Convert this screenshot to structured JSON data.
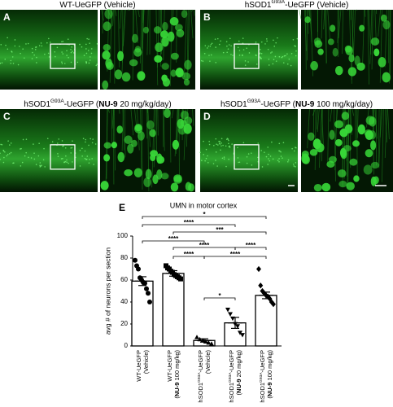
{
  "panels": [
    {
      "letter": "A",
      "title": [
        {
          "text": "WT-UeGFP (Vehicle)"
        }
      ]
    },
    {
      "letter": "B",
      "title": [
        {
          "text": "hSOD1"
        },
        {
          "text": "G93A",
          "style": "sup"
        },
        {
          "text": "-UeGFP (Vehicle)"
        }
      ]
    },
    {
      "letter": "C",
      "title": [
        {
          "text": "hSOD1"
        },
        {
          "text": "G93A",
          "style": "sup"
        },
        {
          "text": "-UeGFP ("
        },
        {
          "text": "NU-9",
          "style": "bold"
        },
        {
          "text": " 20 mg/kg/day)"
        }
      ]
    },
    {
      "letter": "D",
      "title": [
        {
          "text": "hSOD1"
        },
        {
          "text": "G93A",
          "style": "sup"
        },
        {
          "text": "-UeGFP ("
        },
        {
          "text": "NU-9",
          "style": "bold"
        },
        {
          "text": " 100 mg/kg/day)"
        }
      ]
    }
  ],
  "chart_data": {
    "type": "bar",
    "letter": "E",
    "title": "UMN in motor cortex",
    "ylabel": "avg # of neurons per section",
    "categories": [
      [
        [
          {
            "text": "WT-UeGFP"
          }
        ],
        [
          {
            "text": "(Vehicle)"
          }
        ]
      ],
      [
        [
          {
            "text": "WT-UeGFP"
          }
        ],
        [
          {
            "text": "("
          },
          {
            "text": "NU-9",
            "style": "bold"
          },
          {
            "text": " 100 mg/kg)"
          }
        ]
      ],
      [
        [
          {
            "text": "hSOD1"
          },
          {
            "text": "G93A",
            "style": "sup"
          },
          {
            "text": "-UeGFP"
          }
        ],
        [
          {
            "text": "(Vehicle)"
          }
        ]
      ],
      [
        [
          {
            "text": "hSOD1"
          },
          {
            "text": "G93A",
            "style": "sup"
          },
          {
            "text": "-UeGFP"
          }
        ],
        [
          {
            "text": "("
          },
          {
            "text": "NU-9",
            "style": "bold"
          },
          {
            "text": " 20 mg/kg)"
          }
        ]
      ],
      [
        [
          {
            "text": "hSOD1"
          },
          {
            "text": "G93A",
            "style": "sup"
          },
          {
            "text": "-UeGFP"
          }
        ],
        [
          {
            "text": "("
          },
          {
            "text": "NU-9",
            "style": "bold"
          },
          {
            "text": " 100 mg/kg)"
          }
        ]
      ]
    ],
    "values": [
      59,
      66,
      5,
      21,
      46
    ],
    "errors": [
      4,
      2.5,
      1.5,
      5,
      3
    ],
    "points": [
      [
        78,
        73,
        70,
        62,
        60,
        58,
        57,
        52,
        48,
        40
      ],
      [
        73,
        71,
        70,
        68,
        67,
        65,
        64,
        63,
        62,
        61
      ],
      [
        8,
        6,
        5,
        4,
        3,
        2
      ],
      [
        33,
        29,
        25,
        20,
        18,
        12,
        10
      ],
      [
        70,
        55,
        50,
        48,
        46,
        45,
        43,
        40,
        38
      ]
    ],
    "markers": [
      "circle",
      "square",
      "triangle",
      "triangle-down",
      "diamond"
    ],
    "color": "#000000",
    "bar_fill": "#ffffff",
    "ylim": [
      0,
      100
    ],
    "yticks": [
      0,
      20,
      40,
      60,
      80,
      100
    ],
    "significance": [
      {
        "from": 0,
        "to": 4,
        "label": "*"
      },
      {
        "from": 0,
        "to": 3,
        "label": "****"
      },
      {
        "from": 1,
        "to": 4,
        "label": "***"
      },
      {
        "from": 0,
        "to": 2,
        "label": "****"
      },
      {
        "from": 1,
        "to": 3,
        "label": "****"
      },
      {
        "from": 3,
        "to": 4,
        "label": "****"
      },
      {
        "from": 1,
        "to": 2,
        "label": "****"
      },
      {
        "from": 2,
        "to": 4,
        "label": "****"
      },
      {
        "from": 2,
        "to": 3,
        "label": "*"
      }
    ]
  }
}
